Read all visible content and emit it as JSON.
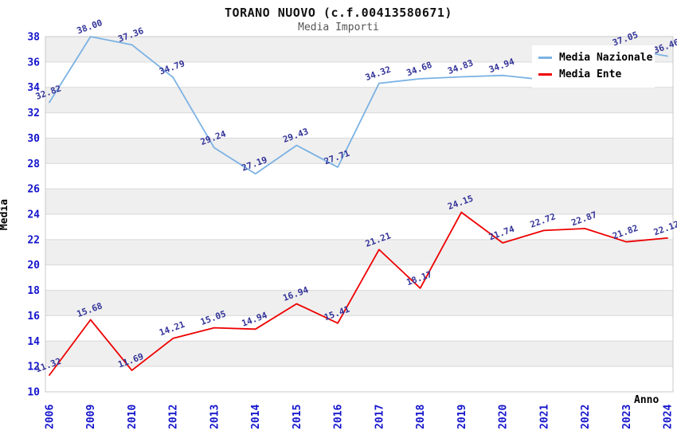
{
  "header": {
    "title": "TORANO NUOVO (c.f.00413580671)",
    "subtitle": "Media Importi"
  },
  "legend": {
    "items": [
      {
        "label": "Media Nazionale",
        "color": "#7bb2e3"
      },
      {
        "label": "Media Ente",
        "color": "#ee0000"
      }
    ]
  },
  "chart_data": {
    "type": "line",
    "title": "TORANO NUOVO (c.f.00413580671)",
    "subtitle": "Media Importi",
    "xlabel": "Anno",
    "ylabel": "Media",
    "categories": [
      "2006",
      "2009",
      "2010",
      "2012",
      "2013",
      "2014",
      "2015",
      "2016",
      "2017",
      "2018",
      "2019",
      "2020",
      "2021",
      "2022",
      "2023",
      "2024"
    ],
    "series": [
      {
        "name": "Media Nazionale",
        "color": "#7bb2e3",
        "values": [
          32.82,
          38.0,
          37.36,
          34.79,
          29.24,
          27.19,
          29.43,
          27.71,
          34.32,
          34.68,
          34.83,
          34.94,
          34.6,
          35.5,
          37.05,
          36.46
        ],
        "labels": [
          "32.82",
          "38.00",
          "37.36",
          "34.79",
          "29.24",
          "27.19",
          "29.43",
          "27.71",
          "34.32",
          "34.68",
          "34.83",
          "34.94",
          "",
          "",
          "37.05",
          "36.46"
        ]
      },
      {
        "name": "Media Ente",
        "color": "#ee0000",
        "values": [
          11.32,
          15.68,
          11.69,
          14.21,
          15.05,
          14.94,
          16.94,
          15.41,
          21.21,
          18.17,
          24.15,
          21.74,
          22.72,
          22.87,
          21.82,
          22.12
        ],
        "labels": [
          "11.32",
          "15.68",
          "11.69",
          "14.21",
          "15.05",
          "14.94",
          "16.94",
          "15.41",
          "21.21",
          "18.17",
          "24.15",
          "21.74",
          "22.72",
          "22.87",
          "21.82",
          "22.12"
        ]
      }
    ],
    "ylim": [
      10,
      38
    ],
    "ytick_step": 2,
    "grid": true,
    "legend_position": "top-right",
    "band_color": "#efefef",
    "grid_color": "#d9d9d9",
    "border_color": "#c9c9c9",
    "tick_label_color": "#1414cc",
    "datalabel_color": "#333399"
  }
}
